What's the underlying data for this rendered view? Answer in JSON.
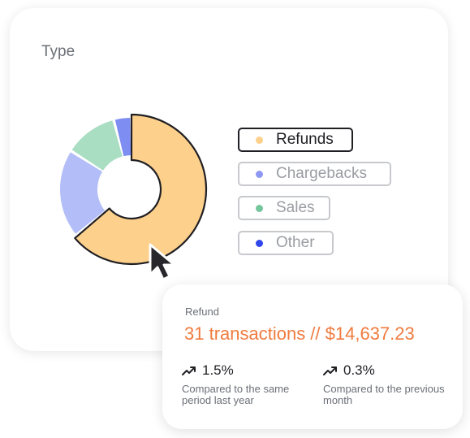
{
  "card": {
    "title": "Type"
  },
  "chart_data": {
    "type": "pie",
    "variant": "donut",
    "categories": [
      "Refunds",
      "Chargebacks",
      "Sales",
      "Other"
    ],
    "values": [
      64,
      20,
      12,
      4
    ],
    "colors": [
      "#fdd08c",
      "#b3bdf8",
      "#a9dec2",
      "#7d8df2"
    ],
    "highlighted": "Refunds"
  },
  "legend": [
    {
      "label": "Refunds",
      "color": "#fdd08c",
      "active": true
    },
    {
      "label": "Chargebacks",
      "color": "#8e98f3",
      "active": false
    },
    {
      "label": "Sales",
      "color": "#74c79c",
      "active": false
    },
    {
      "label": "Other",
      "color": "#3047ee",
      "active": false
    }
  ],
  "tooltip": {
    "label": "Refund",
    "value": "31 transactions // $14,637.23",
    "stats": [
      {
        "icon": "trend-up-icon",
        "pct": "1.5%",
        "desc": "Compared to the same period last year"
      },
      {
        "icon": "trend-up-icon",
        "pct": "0.3%",
        "desc": "Compared to the previous month"
      }
    ]
  },
  "colors": {
    "accent": "#f07b3f",
    "text": "#1f1f24",
    "muted": "#6b6f76"
  }
}
